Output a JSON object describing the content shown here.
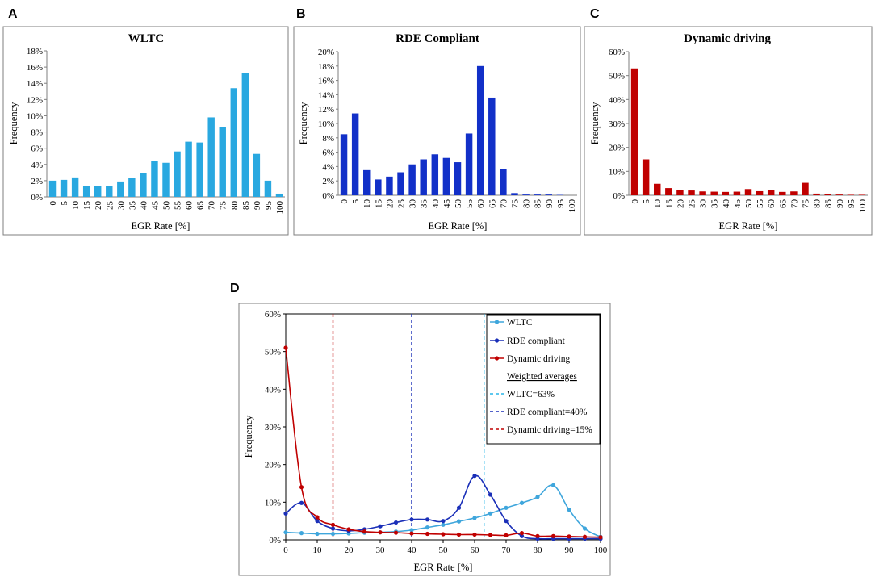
{
  "panels": {
    "A": {
      "letter": "A",
      "title": "WLTC",
      "xlabel": "EGR Rate [%]",
      "ylabel": "Frequency",
      "color": "#29a8e0"
    },
    "B": {
      "letter": "B",
      "title": "RDE Compliant",
      "xlabel": "EGR Rate [%]",
      "ylabel": "Frequency",
      "color": "#1230c8"
    },
    "C": {
      "letter": "C",
      "title": "Dynamic driving",
      "xlabel": "EGR Rate [%]",
      "ylabel": "Frequency",
      "color": "#c00000"
    },
    "D": {
      "letter": "D",
      "xlabel": "EGR Rate [%]",
      "ylabel": "Frequency"
    }
  },
  "legend": {
    "wltc": "WLTC",
    "rde": "RDE compliant",
    "dyn": "Dynamic driving",
    "heading": "Weighted averages",
    "wltc_avg": "WLTC=63%",
    "rde_avg": "RDE compliant=40%",
    "dyn_avg": "Dynamic driving=15%"
  },
  "colors": {
    "wltc": "#3fa6dc",
    "rde": "#1a2fb8",
    "dyn": "#c00000"
  },
  "chart_data": [
    {
      "type": "bar",
      "title": "WLTC",
      "xlabel": "EGR Rate [%]",
      "ylabel": "Frequency",
      "categories": [
        "0",
        "5",
        "10",
        "15",
        "20",
        "25",
        "30",
        "35",
        "40",
        "45",
        "50",
        "55",
        "60",
        "65",
        "70",
        "75",
        "80",
        "85",
        "90",
        "95",
        "100"
      ],
      "values": [
        2.0,
        2.1,
        2.4,
        1.3,
        1.3,
        1.3,
        1.9,
        2.3,
        2.9,
        4.4,
        4.2,
        5.6,
        6.8,
        6.7,
        9.8,
        8.6,
        13.4,
        15.3,
        5.3,
        2.0,
        0.4
      ],
      "yticks": [
        "0%",
        "2%",
        "4%",
        "6%",
        "8%",
        "10%",
        "12%",
        "14%",
        "16%",
        "18%"
      ],
      "ylim": [
        0,
        18
      ]
    },
    {
      "type": "bar",
      "title": "RDE Compliant",
      "xlabel": "EGR Rate [%]",
      "ylabel": "Frequency",
      "categories": [
        "0",
        "5",
        "10",
        "15",
        "20",
        "25",
        "30",
        "35",
        "40",
        "45",
        "50",
        "55",
        "60",
        "65",
        "70",
        "75",
        "80",
        "85",
        "90",
        "95",
        "100"
      ],
      "values": [
        8.5,
        11.4,
        3.5,
        2.2,
        2.6,
        3.2,
        4.3,
        5.0,
        5.7,
        5.2,
        4.6,
        8.6,
        18.0,
        13.6,
        3.7,
        0.3,
        0.1,
        0.1,
        0.1,
        0.05,
        0
      ],
      "yticks": [
        "0%",
        "2%",
        "4%",
        "6%",
        "8%",
        "10%",
        "12%",
        "14%",
        "16%",
        "18%",
        "20%"
      ],
      "ylim": [
        0,
        20
      ]
    },
    {
      "type": "bar",
      "title": "Dynamic driving",
      "xlabel": "EGR Rate [%]",
      "ylabel": "Frequency",
      "categories": [
        "0",
        "5",
        "10",
        "15",
        "20",
        "25",
        "30",
        "35",
        "40",
        "45",
        "50",
        "55",
        "60",
        "65",
        "70",
        "75",
        "80",
        "85",
        "90",
        "95",
        "100"
      ],
      "values": [
        53,
        15,
        4.8,
        3.0,
        2.3,
        2.0,
        1.6,
        1.5,
        1.4,
        1.5,
        2.6,
        1.7,
        2.1,
        1.4,
        1.6,
        5.2,
        0.7,
        0.4,
        0.3,
        0.2,
        0.2
      ],
      "yticks": [
        "0%",
        "10%",
        "20%",
        "30%",
        "40%",
        "50%",
        "60%"
      ],
      "ylim": [
        0,
        60
      ]
    },
    {
      "type": "line",
      "xlabel": "EGR Rate [%]",
      "ylabel": "Frequency",
      "x": [
        0,
        5,
        10,
        15,
        20,
        25,
        30,
        35,
        40,
        45,
        50,
        55,
        60,
        65,
        70,
        75,
        80,
        85,
        90,
        95,
        100
      ],
      "xticks": [
        "0",
        "10",
        "20",
        "30",
        "40",
        "50",
        "60",
        "70",
        "80",
        "90",
        "100"
      ],
      "yticks": [
        "0%",
        "10%",
        "20%",
        "30%",
        "40%",
        "50%",
        "60%"
      ],
      "xlim": [
        0,
        100
      ],
      "ylim": [
        0,
        60
      ],
      "series": [
        {
          "name": "WLTC",
          "values": [
            2.0,
            1.8,
            1.6,
            1.6,
            1.7,
            1.9,
            2.0,
            2.2,
            2.6,
            3.3,
            4.0,
            4.9,
            5.8,
            7.0,
            8.5,
            9.8,
            11.4,
            14.5,
            8.0,
            3.0,
            0.8
          ]
        },
        {
          "name": "RDE compliant",
          "values": [
            7.0,
            9.8,
            5.0,
            3.0,
            2.4,
            2.8,
            3.6,
            4.6,
            5.4,
            5.4,
            5.0,
            8.5,
            17.0,
            12.0,
            5.0,
            1.0,
            0.3,
            0.3,
            0.3,
            0.3,
            0.3
          ]
        },
        {
          "name": "Dynamic driving",
          "values": [
            51,
            14,
            6.0,
            4.0,
            2.8,
            2.2,
            2.0,
            1.9,
            1.7,
            1.6,
            1.5,
            1.4,
            1.4,
            1.3,
            1.2,
            1.8,
            1.0,
            1.0,
            0.9,
            0.8,
            0.7
          ]
        }
      ],
      "weighted_averages": [
        {
          "name": "WLTC=63%",
          "x": 63
        },
        {
          "name": "RDE compliant=40%",
          "x": 40
        },
        {
          "name": "Dynamic driving=15%",
          "x": 15
        }
      ]
    }
  ]
}
